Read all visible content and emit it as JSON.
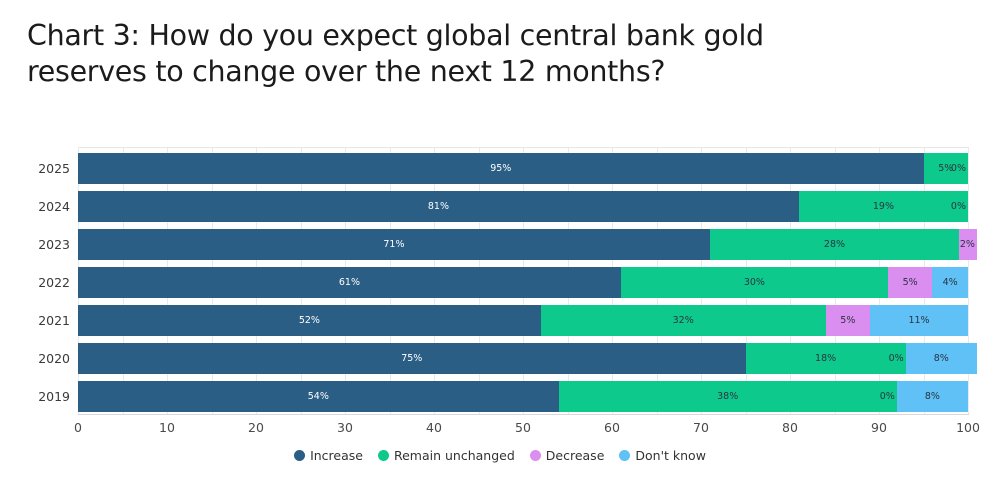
{
  "title": {
    "full": "Chart 3: How do you expect global central bank gold reserves to change over the next 12 months?",
    "line1": "Chart 3: How do you expect global central bank gold",
    "line2": "reserves to change over the next 12 months?"
  },
  "colors": {
    "increase": "#2b5e84",
    "remain_unchanged": "#0dc98c",
    "decrease": "#d98ef0",
    "dont_know": "#5fc1f5",
    "grid": "#e9e9e9",
    "axis_line": "#d8d8d8",
    "tick_text": "#4a4a4a",
    "category_text": "#3a3a3a",
    "label_on_dark": "#ffffff",
    "label_on_light": "#2a3442"
  },
  "chart_data": {
    "type": "bar",
    "variant": "horizontal-stacked",
    "title": "Chart 3: How do you expect global central bank gold reserves to change over the next 12 months?",
    "categories": [
      "2025",
      "2024",
      "2023",
      "2022",
      "2021",
      "2020",
      "2019"
    ],
    "series": [
      {
        "name": "Increase",
        "color": "#2b5e84",
        "label_color": "#ffffff",
        "values": [
          95,
          81,
          71,
          61,
          52,
          75,
          54
        ],
        "labels": [
          "95%",
          "81%",
          "71%",
          "61%",
          "52%",
          "75%",
          "54%"
        ]
      },
      {
        "name": "Remain unchanged",
        "color": "#0dc98c",
        "label_color": "#2a3442",
        "values": [
          5,
          19,
          28,
          30,
          32,
          18,
          38
        ],
        "labels": [
          "5%",
          "19%",
          "28%",
          "30%",
          "32%",
          "18%",
          "38%"
        ]
      },
      {
        "name": "Decrease",
        "color": "#d98ef0",
        "label_color": "#2a3442",
        "values": [
          0,
          0,
          2,
          5,
          5,
          0,
          0
        ],
        "labels": [
          "0%",
          "0%",
          "2%",
          "5%",
          "5%",
          "0%",
          "0%"
        ]
      },
      {
        "name": "Don't know",
        "color": "#5fc1f5",
        "label_color": "#2a3442",
        "values": [
          0,
          0,
          0,
          4,
          11,
          8,
          8
        ],
        "labels": [
          "",
          "",
          "",
          "4%",
          "11%",
          "8%",
          "8%"
        ]
      }
    ],
    "xlim": [
      0,
      100
    ],
    "x_ticks": [
      0,
      10,
      20,
      30,
      40,
      50,
      60,
      70,
      80,
      90,
      100
    ],
    "minor_grid_step": 5,
    "grid": true,
    "legend_position": "bottom",
    "legend": [
      "Increase",
      "Remain unchanged",
      "Decrease",
      "Don't know"
    ]
  }
}
